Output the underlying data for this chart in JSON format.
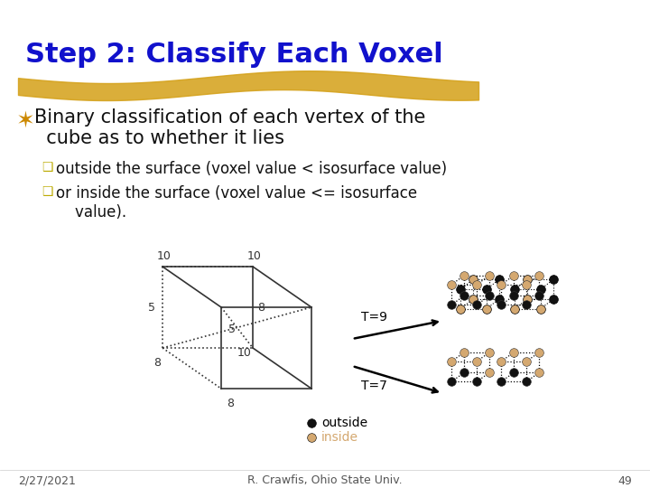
{
  "title": "Step 2: Classify Each Voxel",
  "title_color": "#1111CC",
  "bg_color": "#FFFFFF",
  "highlight_color": "#D4A017",
  "bullet_color": "#CC8800",
  "sub_bullet_color": "#BBAA00",
  "date_text": "2/27/2021",
  "credit_text": "R. Crawfis, Ohio State Univ.",
  "page_num": "49",
  "outside_color": "#111111",
  "inside_color": "#D4A870"
}
